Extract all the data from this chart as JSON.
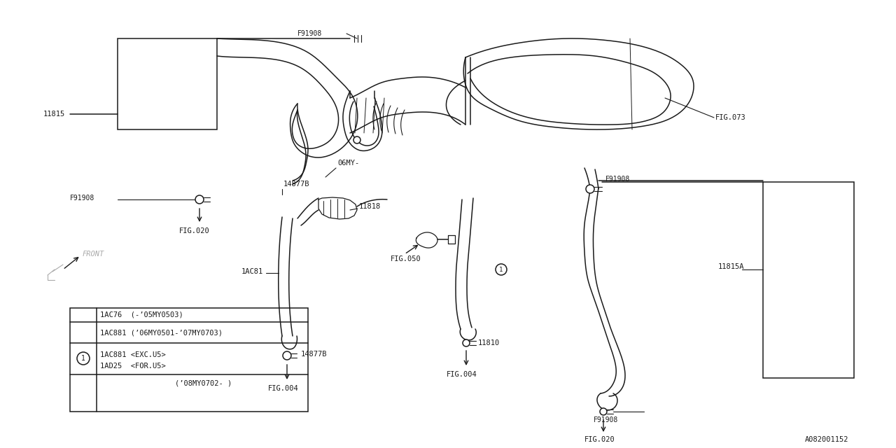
{
  "bg_color": "#ffffff",
  "line_color": "#1a1a1a",
  "fig_width": 12.8,
  "fig_height": 6.4,
  "dpi": 100,
  "part_number": "A082001152",
  "legend_rows": [
    "1AC76  (-’05MY0503)",
    "1AC881 (’06MY0501-’07MY0703)",
    "1AC881 <EXC.U5>",
    "1AD25  <FOR.U5>",
    "(’08MY0702- )"
  ]
}
